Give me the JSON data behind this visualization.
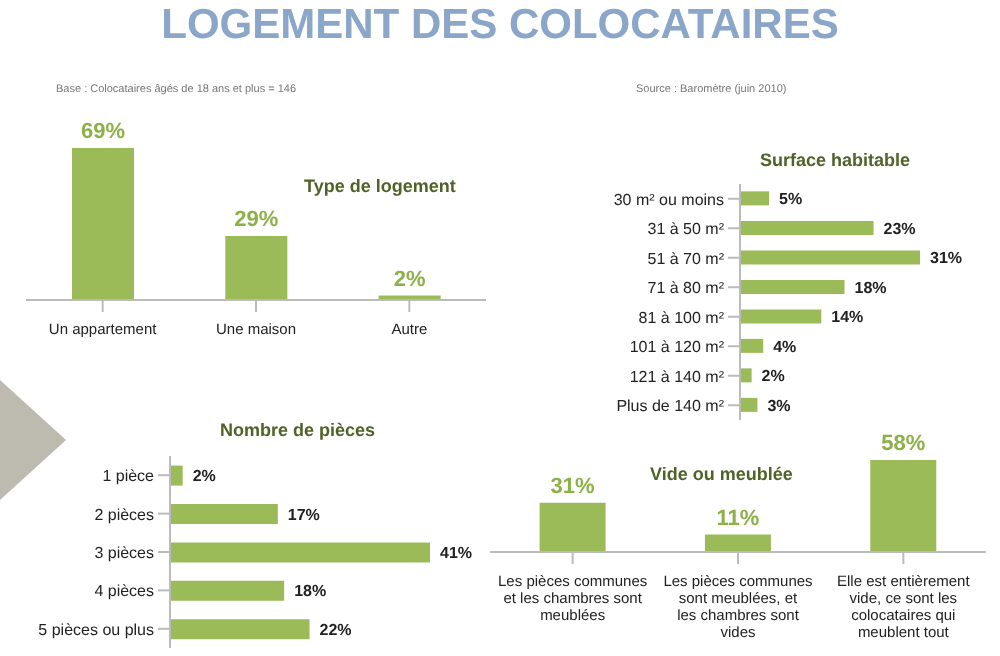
{
  "chart_data": [
    {
      "type": "bar",
      "title": "Type de logement",
      "categories": [
        "Un appartement",
        "Une maison",
        "Autre"
      ],
      "values": [
        69,
        29,
        2
      ],
      "value_labels": [
        "69%",
        "29%",
        "2%"
      ],
      "color": "#9bbb59",
      "annotations": [
        "LOGEMENT DES COLOCATAIRES",
        "Base : Colocataires âgés de 18 ans et plus = 146",
        "Source : Baromètre (juin 2010)"
      ]
    },
    {
      "type": "bar",
      "orientation": "horizontal",
      "title": "Surface habitable",
      "categories": [
        "30 m² ou moins",
        "31 à 50 m²",
        "51 à 70 m²",
        "71 à 80 m²",
        "81 à 100 m²",
        "101 à 120 m²",
        "121 à 140 m²",
        "Plus de 140 m²"
      ],
      "values": [
        5,
        23,
        31,
        18,
        14,
        4,
        2,
        3
      ],
      "value_labels": [
        "5%",
        "23%",
        "31%",
        "18%",
        "14%",
        "4%",
        "2%",
        "3%"
      ],
      "color": "#9bbb59"
    },
    {
      "type": "bar",
      "orientation": "horizontal",
      "title": "Nombre de pièces",
      "categories": [
        "1 pièce",
        "2 pièces",
        "3 pièces",
        "4 pièces",
        "5 pièces ou plus"
      ],
      "values": [
        2,
        17,
        41,
        18,
        22
      ],
      "value_labels": [
        "2%",
        "17%",
        "41%",
        "18%",
        "22%"
      ],
      "color": "#9bbb59"
    },
    {
      "type": "bar",
      "title": "Vide ou meublée",
      "categories": [
        "Les pièces communes et les chambres sont meublées",
        "Les pièces communes sont meublées, et les chambres sont vides",
        "Elle est entièrement vide, ce sont les colocataires qui meublent tout"
      ],
      "values": [
        31,
        11,
        58
      ],
      "value_labels": [
        "31%",
        "11%",
        "58%"
      ],
      "color": "#9bbb59"
    }
  ]
}
